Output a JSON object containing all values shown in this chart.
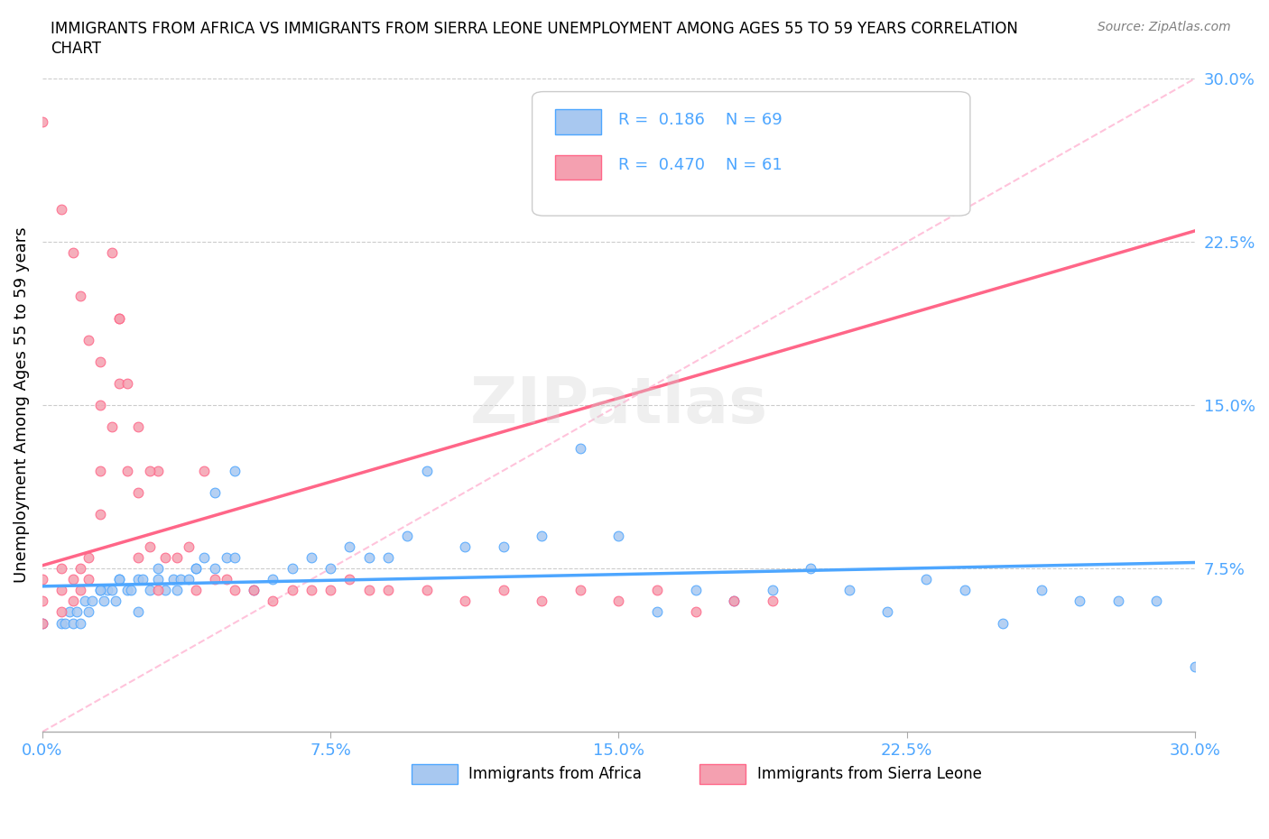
{
  "title_line1": "IMMIGRANTS FROM AFRICA VS IMMIGRANTS FROM SIERRA LEONE UNEMPLOYMENT AMONG AGES 55 TO 59 YEARS CORRELATION",
  "title_line2": "CHART",
  "source_text": "Source: ZipAtlas.com",
  "ylabel": "Unemployment Among Ages 55 to 59 years",
  "xlim": [
    0.0,
    0.3
  ],
  "ylim": [
    0.0,
    0.3
  ],
  "xtick_labels": [
    "0.0%",
    "7.5%",
    "15.0%",
    "22.5%",
    "30.0%"
  ],
  "xtick_vals": [
    0.0,
    0.075,
    0.15,
    0.225,
    0.3
  ],
  "ytick_labels": [
    "7.5%",
    "15.0%",
    "22.5%",
    "30.0%"
  ],
  "ytick_vals": [
    0.075,
    0.15,
    0.225,
    0.3
  ],
  "R_africa": 0.186,
  "N_africa": 69,
  "R_sierra": 0.47,
  "N_sierra": 61,
  "color_africa": "#a8c8f0",
  "color_sierra": "#f4a0b0",
  "line_color_africa": "#4da6ff",
  "line_color_sierra": "#ff6688",
  "diag_color": "#ffaacc",
  "watermark": "ZIPatlas",
  "africa_x": [
    0.0,
    0.005,
    0.006,
    0.007,
    0.008,
    0.009,
    0.01,
    0.011,
    0.012,
    0.013,
    0.015,
    0.016,
    0.017,
    0.018,
    0.019,
    0.02,
    0.022,
    0.023,
    0.025,
    0.026,
    0.028,
    0.03,
    0.032,
    0.034,
    0.036,
    0.038,
    0.04,
    0.042,
    0.045,
    0.048,
    0.05,
    0.055,
    0.06,
    0.065,
    0.07,
    0.075,
    0.08,
    0.085,
    0.09,
    0.095,
    0.1,
    0.11,
    0.12,
    0.13,
    0.14,
    0.15,
    0.16,
    0.17,
    0.18,
    0.19,
    0.2,
    0.21,
    0.22,
    0.23,
    0.24,
    0.25,
    0.26,
    0.27,
    0.28,
    0.29,
    0.3,
    0.015,
    0.02,
    0.025,
    0.03,
    0.035,
    0.04,
    0.045,
    0.05
  ],
  "africa_y": [
    0.05,
    0.05,
    0.05,
    0.055,
    0.05,
    0.055,
    0.05,
    0.06,
    0.055,
    0.06,
    0.065,
    0.06,
    0.065,
    0.065,
    0.06,
    0.07,
    0.065,
    0.065,
    0.07,
    0.07,
    0.065,
    0.075,
    0.065,
    0.07,
    0.07,
    0.07,
    0.075,
    0.08,
    0.075,
    0.08,
    0.08,
    0.065,
    0.07,
    0.075,
    0.08,
    0.075,
    0.085,
    0.08,
    0.08,
    0.09,
    0.12,
    0.085,
    0.085,
    0.09,
    0.13,
    0.09,
    0.055,
    0.065,
    0.06,
    0.065,
    0.075,
    0.065,
    0.055,
    0.07,
    0.065,
    0.05,
    0.065,
    0.06,
    0.06,
    0.06,
    0.03,
    0.065,
    0.07,
    0.055,
    0.07,
    0.065,
    0.075,
    0.11,
    0.12
  ],
  "sierra_x": [
    0.0,
    0.0,
    0.0,
    0.005,
    0.005,
    0.005,
    0.008,
    0.008,
    0.01,
    0.01,
    0.012,
    0.012,
    0.015,
    0.015,
    0.015,
    0.018,
    0.02,
    0.02,
    0.022,
    0.025,
    0.025,
    0.028,
    0.03,
    0.03,
    0.032,
    0.035,
    0.038,
    0.04,
    0.042,
    0.045,
    0.048,
    0.05,
    0.055,
    0.06,
    0.065,
    0.07,
    0.075,
    0.08,
    0.085,
    0.09,
    0.1,
    0.11,
    0.12,
    0.13,
    0.14,
    0.15,
    0.16,
    0.17,
    0.18,
    0.19,
    0.0,
    0.005,
    0.008,
    0.01,
    0.012,
    0.015,
    0.018,
    0.02,
    0.022,
    0.025,
    0.028
  ],
  "sierra_y": [
    0.05,
    0.06,
    0.07,
    0.055,
    0.065,
    0.075,
    0.06,
    0.07,
    0.065,
    0.075,
    0.07,
    0.08,
    0.1,
    0.12,
    0.15,
    0.14,
    0.16,
    0.19,
    0.12,
    0.08,
    0.11,
    0.085,
    0.12,
    0.065,
    0.08,
    0.08,
    0.085,
    0.065,
    0.12,
    0.07,
    0.07,
    0.065,
    0.065,
    0.06,
    0.065,
    0.065,
    0.065,
    0.07,
    0.065,
    0.065,
    0.065,
    0.06,
    0.065,
    0.06,
    0.065,
    0.06,
    0.065,
    0.055,
    0.06,
    0.06,
    0.28,
    0.24,
    0.22,
    0.2,
    0.18,
    0.17,
    0.22,
    0.19,
    0.16,
    0.14,
    0.12
  ]
}
